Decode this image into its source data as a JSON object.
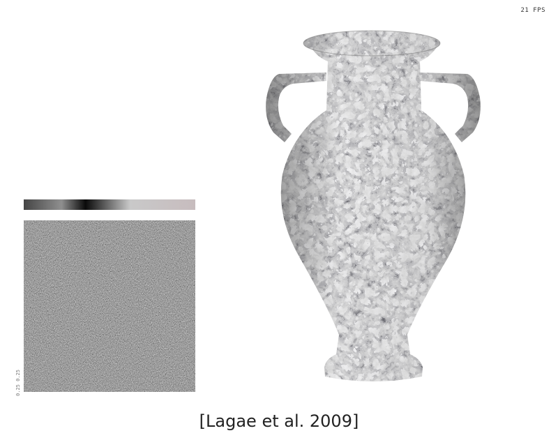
{
  "overlay": {
    "fps_label": "21 FPS",
    "panel_stamp": "0.25 0.25"
  },
  "figure": {
    "citation": "[Lagae et al. 2009]",
    "colormap_stops": [
      "#454545",
      "#8f8f8f",
      "#0a0a0a",
      "#c9c9c9",
      "#c7bcbe"
    ]
  },
  "icons": [
    "noise-texture-icon",
    "vase-render-icon",
    "colormap-gradient-icon"
  ]
}
